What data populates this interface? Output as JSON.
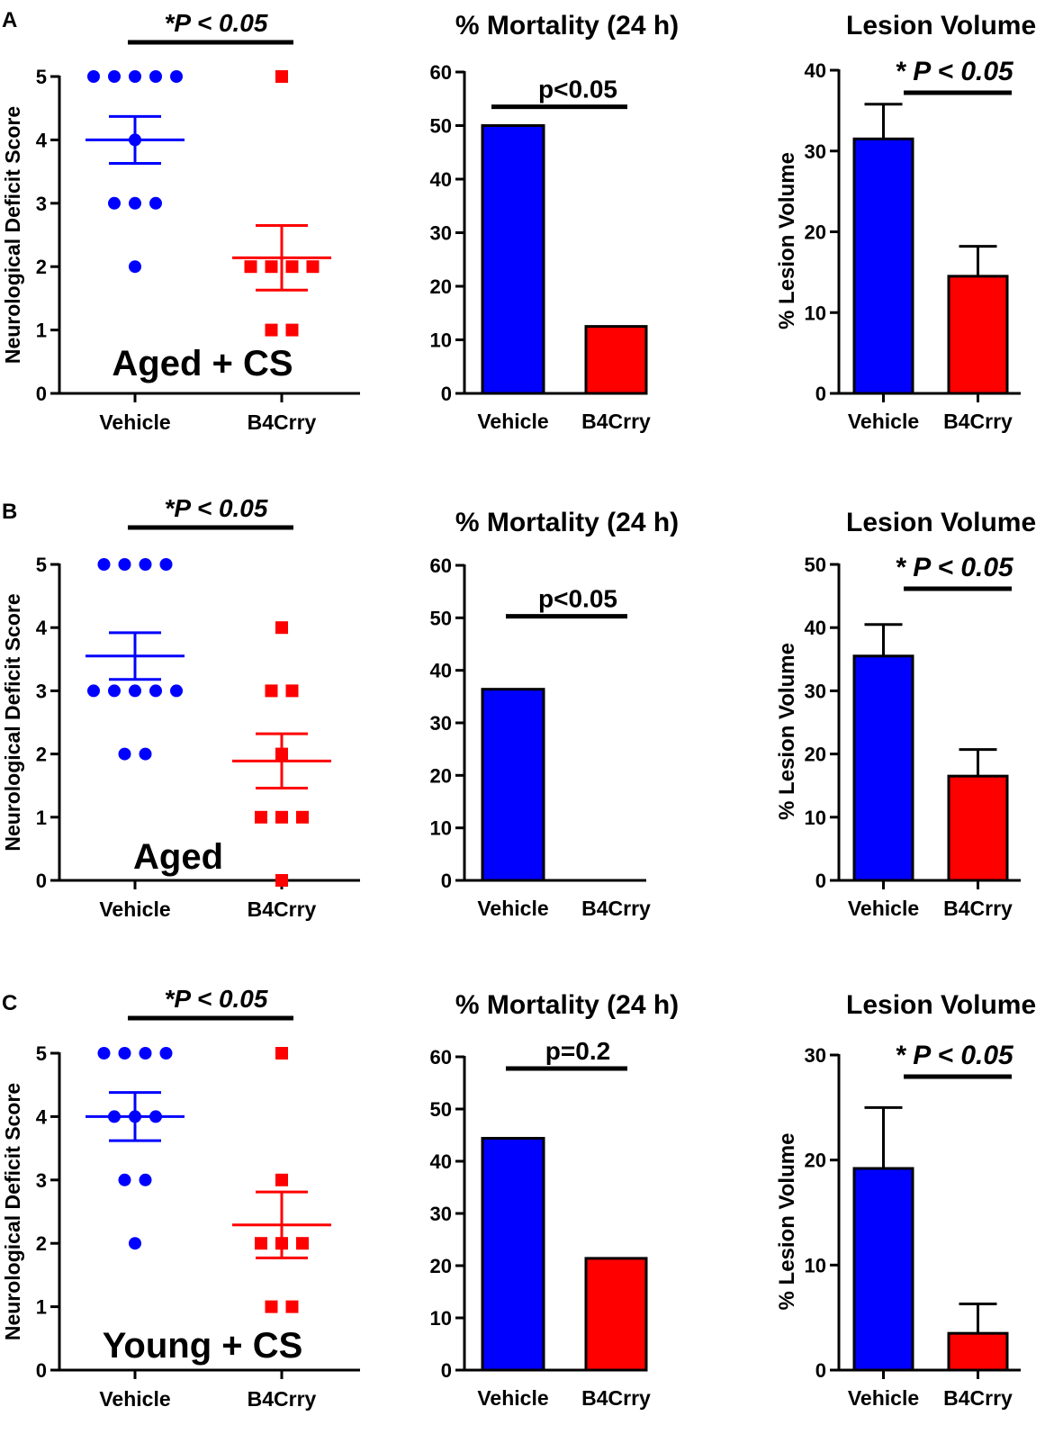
{
  "figure": {
    "rows": [
      {
        "id": "A",
        "label": "A",
        "scatter": {
          "type": "scatter",
          "group_label": "Aged + CS",
          "ylabel": "Neurological Deficit Score",
          "ylim": [
            0,
            5
          ],
          "yticks": [
            "0",
            "1",
            "2",
            "3",
            "4",
            "5"
          ],
          "categories": [
            "Vehicle",
            "B4Crry"
          ],
          "significance": "*P < 0.05",
          "series": [
            {
              "name": "Vehicle",
              "color": "#0000ff",
              "marker": "circle",
              "points": [
                5,
                5,
                5,
                5,
                5,
                4,
                3,
                3,
                3,
                2
              ],
              "mean": 4.0,
              "sem": 0.37
            },
            {
              "name": "B4Crry",
              "color": "#ff0000",
              "marker": "square",
              "points": [
                5,
                2,
                2,
                2,
                2,
                1,
                1
              ],
              "mean": 2.14,
              "sem": 0.51
            }
          ]
        },
        "mortality": {
          "type": "bar",
          "title": "% Mortality (24 h)",
          "ylim": [
            0,
            60
          ],
          "yticks": [
            "0",
            "10",
            "20",
            "30",
            "40",
            "50",
            "60"
          ],
          "categories": [
            "Vehicle",
            "B4Crry"
          ],
          "values": [
            50,
            12.5
          ],
          "colors": [
            "#0000ff",
            "#ff0000"
          ],
          "significance": "p<0.05"
        },
        "lesion": {
          "type": "bar",
          "title": "Lesion Volume",
          "ylabel": "% Lesion  Volume",
          "ylim": [
            0,
            40
          ],
          "yticks": [
            "0",
            "10",
            "20",
            "30",
            "40"
          ],
          "categories": [
            "Vehicle",
            "B4Crry"
          ],
          "values": [
            31.5,
            14.5
          ],
          "errors": [
            4.3,
            3.7
          ],
          "colors": [
            "#0000ff",
            "#ff0000"
          ],
          "significance": "* P < 0.05"
        }
      },
      {
        "id": "B",
        "label": "B",
        "scatter": {
          "type": "scatter",
          "group_label": "Aged",
          "ylabel": "Neurological Deficit Score",
          "ylim": [
            0,
            5
          ],
          "yticks": [
            "0",
            "1",
            "2",
            "3",
            "4",
            "5"
          ],
          "categories": [
            "Vehicle",
            "B4Crry"
          ],
          "significance": "*P < 0.05",
          "series": [
            {
              "name": "Vehicle",
              "color": "#0000ff",
              "marker": "circle",
              "points": [
                5,
                5,
                5,
                5,
                3,
                3,
                3,
                3,
                3,
                2,
                2
              ],
              "mean": 3.55,
              "sem": 0.37
            },
            {
              "name": "B4Crry",
              "color": "#ff0000",
              "marker": "square",
              "points": [
                4,
                3,
                3,
                2,
                1,
                1,
                1,
                0
              ],
              "mean": 1.89,
              "sem": 0.43
            }
          ]
        },
        "mortality": {
          "type": "bar",
          "title": "% Mortality (24 h)",
          "ylim": [
            0,
            60
          ],
          "yticks": [
            "0",
            "10",
            "20",
            "30",
            "40",
            "50",
            "60"
          ],
          "categories": [
            "Vehicle",
            "B4Crry"
          ],
          "values": [
            36.4,
            0
          ],
          "colors": [
            "#0000ff",
            "#ff0000"
          ],
          "significance": "p<0.05"
        },
        "lesion": {
          "type": "bar",
          "title": "Lesion Volume",
          "ylabel": "% Lesion  Volume",
          "ylim": [
            0,
            50
          ],
          "yticks": [
            "0",
            "10",
            "20",
            "30",
            "40",
            "50"
          ],
          "categories": [
            "Vehicle",
            "B4Crry"
          ],
          "values": [
            35.5,
            16.5
          ],
          "errors": [
            5.0,
            4.2
          ],
          "colors": [
            "#0000ff",
            "#ff0000"
          ],
          "significance": "* P < 0.05"
        }
      },
      {
        "id": "C",
        "label": "C",
        "scatter": {
          "type": "scatter",
          "group_label": "Young + CS",
          "ylabel": "Neurological Deficit Score",
          "ylim": [
            0,
            5
          ],
          "yticks": [
            "0",
            "1",
            "2",
            "3",
            "4",
            "5"
          ],
          "categories": [
            "Vehicle",
            "B4Crry"
          ],
          "significance": "*P < 0.05",
          "series": [
            {
              "name": "Vehicle",
              "color": "#0000ff",
              "marker": "circle",
              "points": [
                5,
                5,
                5,
                5,
                4,
                4,
                4,
                3,
                3,
                2
              ],
              "mean": 4.0,
              "sem": 0.38
            },
            {
              "name": "B4Crry",
              "color": "#ff0000",
              "marker": "square",
              "points": [
                5,
                3,
                2,
                2,
                2,
                1,
                1
              ],
              "mean": 2.29,
              "sem": 0.52
            }
          ]
        },
        "mortality": {
          "type": "bar",
          "title": "% Mortality (24 h)",
          "ylim": [
            0,
            60
          ],
          "yticks": [
            "0",
            "10",
            "20",
            "30",
            "40",
            "50",
            "60"
          ],
          "categories": [
            "Vehicle",
            "B4Crry"
          ],
          "values": [
            44.4,
            21.4
          ],
          "colors": [
            "#0000ff",
            "#ff0000"
          ],
          "significance": "p=0.2"
        },
        "lesion": {
          "type": "bar",
          "title": "Lesion Volume",
          "ylabel": "% Lesion  Volume",
          "ylim": [
            0,
            30
          ],
          "yticks": [
            "0",
            "10",
            "20",
            "30"
          ],
          "categories": [
            "Vehicle",
            "B4Crry"
          ],
          "values": [
            19.2,
            3.5
          ],
          "errors": [
            5.8,
            2.8
          ],
          "colors": [
            "#0000ff",
            "#ff0000"
          ],
          "significance": "* P < 0.05"
        }
      }
    ]
  },
  "chart_data": [
    {
      "panel": "A-neuro",
      "type": "scatter",
      "title": "",
      "xlabel": "",
      "ylabel": "Neurological Deficit Score",
      "categories": [
        "Vehicle",
        "B4Crry"
      ],
      "ylim": [
        0,
        5
      ],
      "series": [
        {
          "name": "Vehicle",
          "values": [
            5,
            5,
            5,
            5,
            5,
            4,
            3,
            3,
            3,
            2
          ],
          "mean": 4.0,
          "sem": 0.37
        },
        {
          "name": "B4Crry",
          "values": [
            5,
            2,
            2,
            2,
            2,
            1,
            1
          ],
          "mean": 2.14,
          "sem": 0.51
        }
      ],
      "annotations": [
        "*P < 0.05",
        "Aged + CS"
      ]
    },
    {
      "panel": "A-mortality",
      "type": "bar",
      "title": "% Mortality (24 h)",
      "categories": [
        "Vehicle",
        "B4Crry"
      ],
      "values": [
        50,
        12.5
      ],
      "ylim": [
        0,
        60
      ],
      "annotations": [
        "p<0.05"
      ]
    },
    {
      "panel": "A-lesion",
      "type": "bar",
      "title": "Lesion Volume",
      "ylabel": "% Lesion  Volume",
      "categories": [
        "Vehicle",
        "B4Crry"
      ],
      "values": [
        31.5,
        14.5
      ],
      "errors": [
        4.3,
        3.7
      ],
      "ylim": [
        0,
        40
      ],
      "annotations": [
        "* P < 0.05"
      ]
    },
    {
      "panel": "B-neuro",
      "type": "scatter",
      "ylabel": "Neurological Deficit Score",
      "categories": [
        "Vehicle",
        "B4Crry"
      ],
      "ylim": [
        0,
        5
      ],
      "series": [
        {
          "name": "Vehicle",
          "values": [
            5,
            5,
            5,
            5,
            3,
            3,
            3,
            3,
            3,
            2,
            2
          ],
          "mean": 3.55,
          "sem": 0.37
        },
        {
          "name": "B4Crry",
          "values": [
            4,
            3,
            3,
            2,
            1,
            1,
            1,
            0
          ],
          "mean": 1.89,
          "sem": 0.43
        }
      ],
      "annotations": [
        "*P < 0.05",
        "Aged"
      ]
    },
    {
      "panel": "B-mortality",
      "type": "bar",
      "title": "% Mortality (24 h)",
      "categories": [
        "Vehicle",
        "B4Crry"
      ],
      "values": [
        36.4,
        0
      ],
      "ylim": [
        0,
        60
      ],
      "annotations": [
        "p<0.05"
      ]
    },
    {
      "panel": "B-lesion",
      "type": "bar",
      "title": "Lesion Volume",
      "ylabel": "% Lesion  Volume",
      "categories": [
        "Vehicle",
        "B4Crry"
      ],
      "values": [
        35.5,
        16.5
      ],
      "errors": [
        5.0,
        4.2
      ],
      "ylim": [
        0,
        50
      ],
      "annotations": [
        "* P < 0.05"
      ]
    },
    {
      "panel": "C-neuro",
      "type": "scatter",
      "ylabel": "Neurological Deficit Score",
      "categories": [
        "Vehicle",
        "B4Crry"
      ],
      "ylim": [
        0,
        5
      ],
      "series": [
        {
          "name": "Vehicle",
          "values": [
            5,
            5,
            5,
            5,
            4,
            4,
            4,
            3,
            3,
            2
          ],
          "mean": 4.0,
          "sem": 0.38
        },
        {
          "name": "B4Crry",
          "values": [
            5,
            3,
            2,
            2,
            2,
            1,
            1
          ],
          "mean": 2.29,
          "sem": 0.52
        }
      ],
      "annotations": [
        "*P < 0.05",
        "Young + CS"
      ]
    },
    {
      "panel": "C-mortality",
      "type": "bar",
      "title": "% Mortality (24 h)",
      "categories": [
        "Vehicle",
        "B4Crry"
      ],
      "values": [
        44.4,
        21.4
      ],
      "ylim": [
        0,
        60
      ],
      "annotations": [
        "p=0.2"
      ]
    },
    {
      "panel": "C-lesion",
      "type": "bar",
      "title": "Lesion Volume",
      "ylabel": "% Lesion  Volume",
      "categories": [
        "Vehicle",
        "B4Crry"
      ],
      "values": [
        19.2,
        3.5
      ],
      "errors": [
        5.8,
        2.8
      ],
      "ylim": [
        0,
        30
      ],
      "annotations": [
        "* P < 0.05"
      ]
    }
  ]
}
